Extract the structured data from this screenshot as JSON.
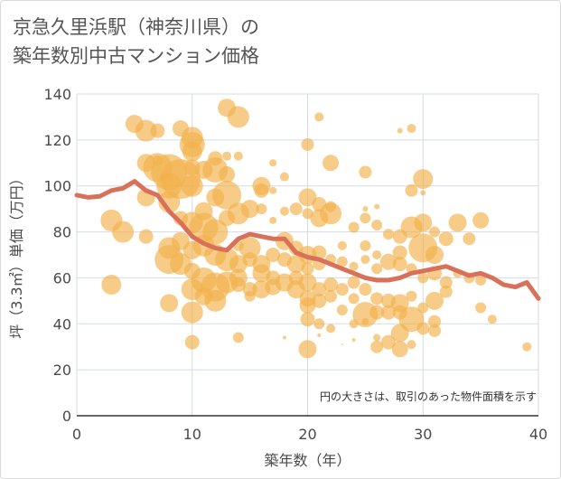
{
  "title_lines": [
    "京急久里浜駅（神奈川県）の",
    "築年数別中古マンション価格"
  ],
  "chart_data": {
    "type": "scatter",
    "xlabel": "築年数（年）",
    "ylabel": "坪（3.3㎡）単価（万円）",
    "xlim": [
      0,
      40
    ],
    "ylim": [
      0,
      140
    ],
    "xticks": [
      "0",
      "10",
      "20",
      "30",
      "40"
    ],
    "yticks": [
      "0",
      "20",
      "40",
      "60",
      "80",
      "100",
      "120",
      "140"
    ],
    "grid": true,
    "note": "円の大きさは、取引のあった物件面積を示す",
    "colors": {
      "bubble": "#f2b14a",
      "trend": "#d9705a",
      "grid": "#d4dbe6",
      "axis": "#333333"
    },
    "trend_line": {
      "x": [
        0,
        1,
        2,
        3,
        4,
        5,
        6,
        7,
        8,
        9,
        10,
        11,
        12,
        13,
        14,
        15,
        16,
        17,
        18,
        19,
        20,
        21,
        22,
        23,
        24,
        25,
        26,
        27,
        28,
        29,
        30,
        31,
        32,
        33,
        34,
        35,
        36,
        37,
        38,
        39,
        40
      ],
      "y": [
        96,
        95,
        95.5,
        98,
        99,
        102,
        98,
        96,
        89,
        84,
        78,
        75,
        73,
        72,
        77,
        79,
        78,
        77,
        77,
        71,
        69,
        68,
        66,
        64,
        62,
        60,
        59,
        59,
        60,
        62,
        63,
        64,
        65,
        63,
        61,
        62,
        60,
        57,
        56,
        58,
        51
      ]
    },
    "bubbles": [
      [
        5,
        127,
        10
      ],
      [
        6,
        124,
        12
      ],
      [
        7,
        124,
        8
      ],
      [
        9,
        125,
        9
      ],
      [
        13,
        134,
        10
      ],
      [
        14,
        130,
        12
      ],
      [
        21,
        130,
        5
      ],
      [
        29,
        125,
        5
      ],
      [
        28,
        124,
        3
      ],
      [
        10,
        121,
        12
      ],
      [
        10,
        118,
        14
      ],
      [
        10,
        115,
        11
      ],
      [
        12,
        112,
        8
      ],
      [
        13,
        113,
        5
      ],
      [
        14,
        113,
        5
      ],
      [
        20,
        118,
        7
      ],
      [
        22,
        110,
        9
      ],
      [
        17,
        110,
        4
      ],
      [
        7,
        111,
        6
      ],
      [
        6,
        110,
        10
      ],
      [
        7,
        108,
        16
      ],
      [
        8,
        106,
        20
      ],
      [
        9,
        103,
        22
      ],
      [
        8,
        100,
        14
      ],
      [
        10,
        100,
        12
      ],
      [
        11,
        107,
        10
      ],
      [
        12,
        107,
        14
      ],
      [
        10,
        108,
        9
      ],
      [
        13,
        105,
        9
      ],
      [
        16,
        100,
        10
      ],
      [
        16,
        98,
        8
      ],
      [
        18,
        104,
        5
      ],
      [
        25,
        106,
        7
      ],
      [
        29,
        98,
        7
      ],
      [
        30,
        103,
        11
      ],
      [
        30,
        97,
        3
      ],
      [
        17,
        98,
        4
      ],
      [
        6,
        95,
        10
      ],
      [
        8,
        93,
        12
      ],
      [
        12,
        95,
        10
      ],
      [
        13,
        96,
        16
      ],
      [
        14,
        88,
        12
      ],
      [
        15,
        90,
        10
      ],
      [
        11,
        89,
        10
      ],
      [
        9,
        86,
        8
      ],
      [
        10,
        84,
        12
      ],
      [
        3,
        85,
        12
      ],
      [
        4,
        80,
        12
      ],
      [
        6,
        78,
        8
      ],
      [
        9,
        76,
        10
      ],
      [
        11,
        82,
        16
      ],
      [
        12,
        80,
        14
      ],
      [
        13,
        86,
        9
      ],
      [
        16,
        90,
        6
      ],
      [
        17,
        85,
        4
      ],
      [
        18,
        89,
        5
      ],
      [
        19,
        90,
        7
      ],
      [
        20,
        88,
        6
      ],
      [
        20,
        95,
        10
      ],
      [
        21,
        92,
        8
      ],
      [
        21,
        86,
        10
      ],
      [
        22,
        88,
        12
      ],
      [
        22,
        91,
        6
      ],
      [
        24,
        82,
        6
      ],
      [
        25,
        86,
        6
      ],
      [
        25,
        90,
        3
      ],
      [
        26,
        91,
        3
      ],
      [
        26,
        83,
        6
      ],
      [
        27,
        79,
        6
      ],
      [
        28,
        78,
        8
      ],
      [
        29,
        82,
        12
      ],
      [
        30,
        84,
        10
      ],
      [
        30,
        73,
        16
      ],
      [
        31,
        70,
        10
      ],
      [
        31,
        80,
        6
      ],
      [
        32,
        77,
        8
      ],
      [
        33,
        84,
        10
      ],
      [
        34,
        77,
        7
      ],
      [
        35,
        85,
        9
      ],
      [
        8,
        73,
        12
      ],
      [
        8,
        68,
        16
      ],
      [
        9,
        66,
        12
      ],
      [
        10,
        72,
        10
      ],
      [
        10,
        63,
        9
      ],
      [
        11,
        74,
        12
      ],
      [
        12,
        70,
        12
      ],
      [
        13,
        68,
        13
      ],
      [
        14,
        66,
        10
      ],
      [
        14,
        74,
        6
      ],
      [
        15,
        73,
        12
      ],
      [
        15,
        68,
        8
      ],
      [
        16,
        66,
        10
      ],
      [
        17,
        70,
        8
      ],
      [
        18,
        76,
        10
      ],
      [
        18,
        68,
        8
      ],
      [
        19,
        73,
        8
      ],
      [
        19,
        66,
        10
      ],
      [
        20,
        70,
        10
      ],
      [
        20,
        64,
        7
      ],
      [
        21,
        71,
        8
      ],
      [
        21,
        66,
        7
      ],
      [
        22,
        68,
        6
      ],
      [
        23,
        74,
        5
      ],
      [
        23,
        67,
        6
      ],
      [
        24,
        65,
        5
      ],
      [
        25,
        74,
        6
      ],
      [
        25,
        68,
        5
      ],
      [
        26,
        70,
        5
      ],
      [
        26,
        64,
        6
      ],
      [
        27,
        67,
        9
      ],
      [
        28,
        71,
        8
      ],
      [
        28,
        66,
        8
      ],
      [
        29,
        64,
        6
      ],
      [
        30,
        60,
        6
      ],
      [
        31,
        62,
        8
      ],
      [
        32,
        58,
        7
      ],
      [
        33,
        62,
        5
      ],
      [
        34,
        60,
        6
      ],
      [
        35,
        59,
        6
      ],
      [
        3,
        57,
        11
      ],
      [
        8,
        49,
        10
      ],
      [
        10,
        55,
        12
      ],
      [
        10,
        45,
        12
      ],
      [
        11,
        59,
        14
      ],
      [
        11,
        52,
        10
      ],
      [
        12,
        56,
        16
      ],
      [
        12,
        50,
        12
      ],
      [
        13,
        58,
        12
      ],
      [
        14,
        60,
        10
      ],
      [
        14,
        57,
        8
      ],
      [
        15,
        55,
        8
      ],
      [
        15,
        52,
        6
      ],
      [
        16,
        62,
        10
      ],
      [
        16,
        55,
        10
      ],
      [
        17,
        60,
        8
      ],
      [
        17,
        56,
        9
      ],
      [
        18,
        58,
        10
      ],
      [
        19,
        60,
        8
      ],
      [
        19,
        55,
        10
      ],
      [
        20,
        58,
        10
      ],
      [
        20,
        51,
        9
      ],
      [
        20,
        48,
        9
      ],
      [
        21,
        55,
        8
      ],
      [
        21,
        50,
        8
      ],
      [
        22,
        57,
        8
      ],
      [
        22,
        52,
        7
      ],
      [
        23,
        55,
        7
      ],
      [
        23,
        46,
        6
      ],
      [
        24,
        58,
        7
      ],
      [
        24,
        51,
        6
      ],
      [
        25,
        55,
        7
      ],
      [
        25,
        44,
        14
      ],
      [
        25,
        41,
        4
      ],
      [
        26,
        45,
        8
      ],
      [
        26,
        51,
        7
      ],
      [
        27,
        50,
        8
      ],
      [
        27,
        45,
        8
      ],
      [
        28,
        49,
        10
      ],
      [
        28,
        45,
        8
      ],
      [
        29,
        42,
        14
      ],
      [
        29,
        52,
        6
      ],
      [
        30,
        47,
        6
      ],
      [
        31,
        50,
        10
      ],
      [
        31,
        41,
        7
      ],
      [
        32,
        54,
        7
      ],
      [
        35,
        47,
        6
      ],
      [
        36,
        42,
        5
      ],
      [
        20,
        42,
        8
      ],
      [
        21,
        40,
        6
      ],
      [
        22,
        38,
        5
      ],
      [
        24,
        40,
        5
      ],
      [
        26,
        34,
        4
      ],
      [
        26,
        30,
        7
      ],
      [
        27,
        32,
        8
      ],
      [
        28,
        29,
        9
      ],
      [
        28,
        36,
        10
      ],
      [
        29,
        31,
        5
      ],
      [
        30,
        38,
        7
      ],
      [
        31,
        37,
        7
      ],
      [
        10,
        32,
        8
      ],
      [
        14,
        34,
        6
      ],
      [
        20,
        29,
        10
      ],
      [
        39,
        30,
        5
      ],
      [
        18,
        34,
        2
      ],
      [
        23,
        31,
        1
      ],
      [
        21,
        35,
        2
      ],
      [
        24,
        33,
        2
      ]
    ]
  }
}
